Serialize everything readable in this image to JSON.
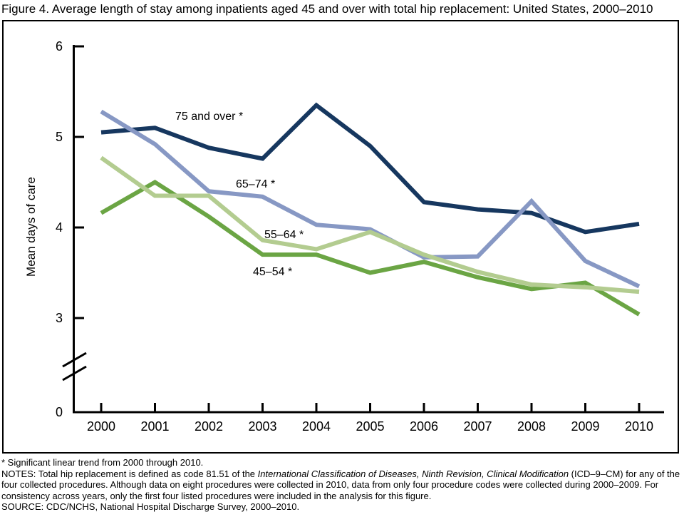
{
  "title": "Figure 4. Average length of stay among inpatients aged 45 and over with total hip replacement: United States, 2000–2010",
  "chart_data": {
    "type": "line",
    "title": "Figure 4. Average length of stay among inpatients aged 45 and over with total hip replacement: United States, 2000–2010",
    "xlabel": "",
    "ylabel": "Mean days of care",
    "categories": [
      "2000",
      "2001",
      "2002",
      "2003",
      "2004",
      "2005",
      "2006",
      "2007",
      "2008",
      "2009",
      "2010"
    ],
    "y_tick_labels": [
      "6",
      "5",
      "4",
      "3",
      "0"
    ],
    "y_tick_values": [
      6,
      5,
      4,
      3,
      0
    ],
    "ylim": [
      0,
      6
    ],
    "y_axis_break_between": [
      0,
      3
    ],
    "grid": false,
    "legend_position": "inline-labels-on-lines",
    "series": [
      {
        "name": "75 and over *",
        "color": "#16375f",
        "values": [
          5.05,
          5.1,
          4.88,
          4.76,
          5.35,
          4.9,
          4.28,
          4.2,
          4.16,
          3.95,
          4.04
        ]
      },
      {
        "name": "65–74 *",
        "color": "#8798c4",
        "values": [
          5.28,
          4.92,
          4.4,
          4.34,
          4.03,
          3.98,
          3.67,
          3.68,
          4.29,
          3.63,
          3.35
        ]
      },
      {
        "name": "55–64 *",
        "color": "#b3cc90",
        "values": [
          4.77,
          4.35,
          4.35,
          3.86,
          3.76,
          3.95,
          3.7,
          3.51,
          3.37,
          3.34,
          3.29
        ]
      },
      {
        "name": "45–54 *",
        "color": "#6ba544",
        "values": [
          4.16,
          4.5,
          4.12,
          3.7,
          3.7,
          3.5,
          3.62,
          3.45,
          3.32,
          3.39,
          3.04
        ]
      }
    ]
  },
  "footnotes": {
    "significance": "* Significant linear trend from 2000 through 2010.",
    "notes_prefix": "NOTES: Total hip replacement is defined as code 81.51 of the ",
    "notes_italic": "International Classification of Diseases, Ninth Revision, Clinical Modification",
    "notes_suffix": " (ICD–9–CM) for any of the four collected procedures. Although data on eight procedures were collected in 2010, data from only four procedure codes were collected during 2000–2009. For consistency across years, only the first four listed procedures were included in the analysis for this figure.",
    "source": "SOURCE: CDC/NCHS, National Hospital Discharge Survey, 2000–2010."
  }
}
